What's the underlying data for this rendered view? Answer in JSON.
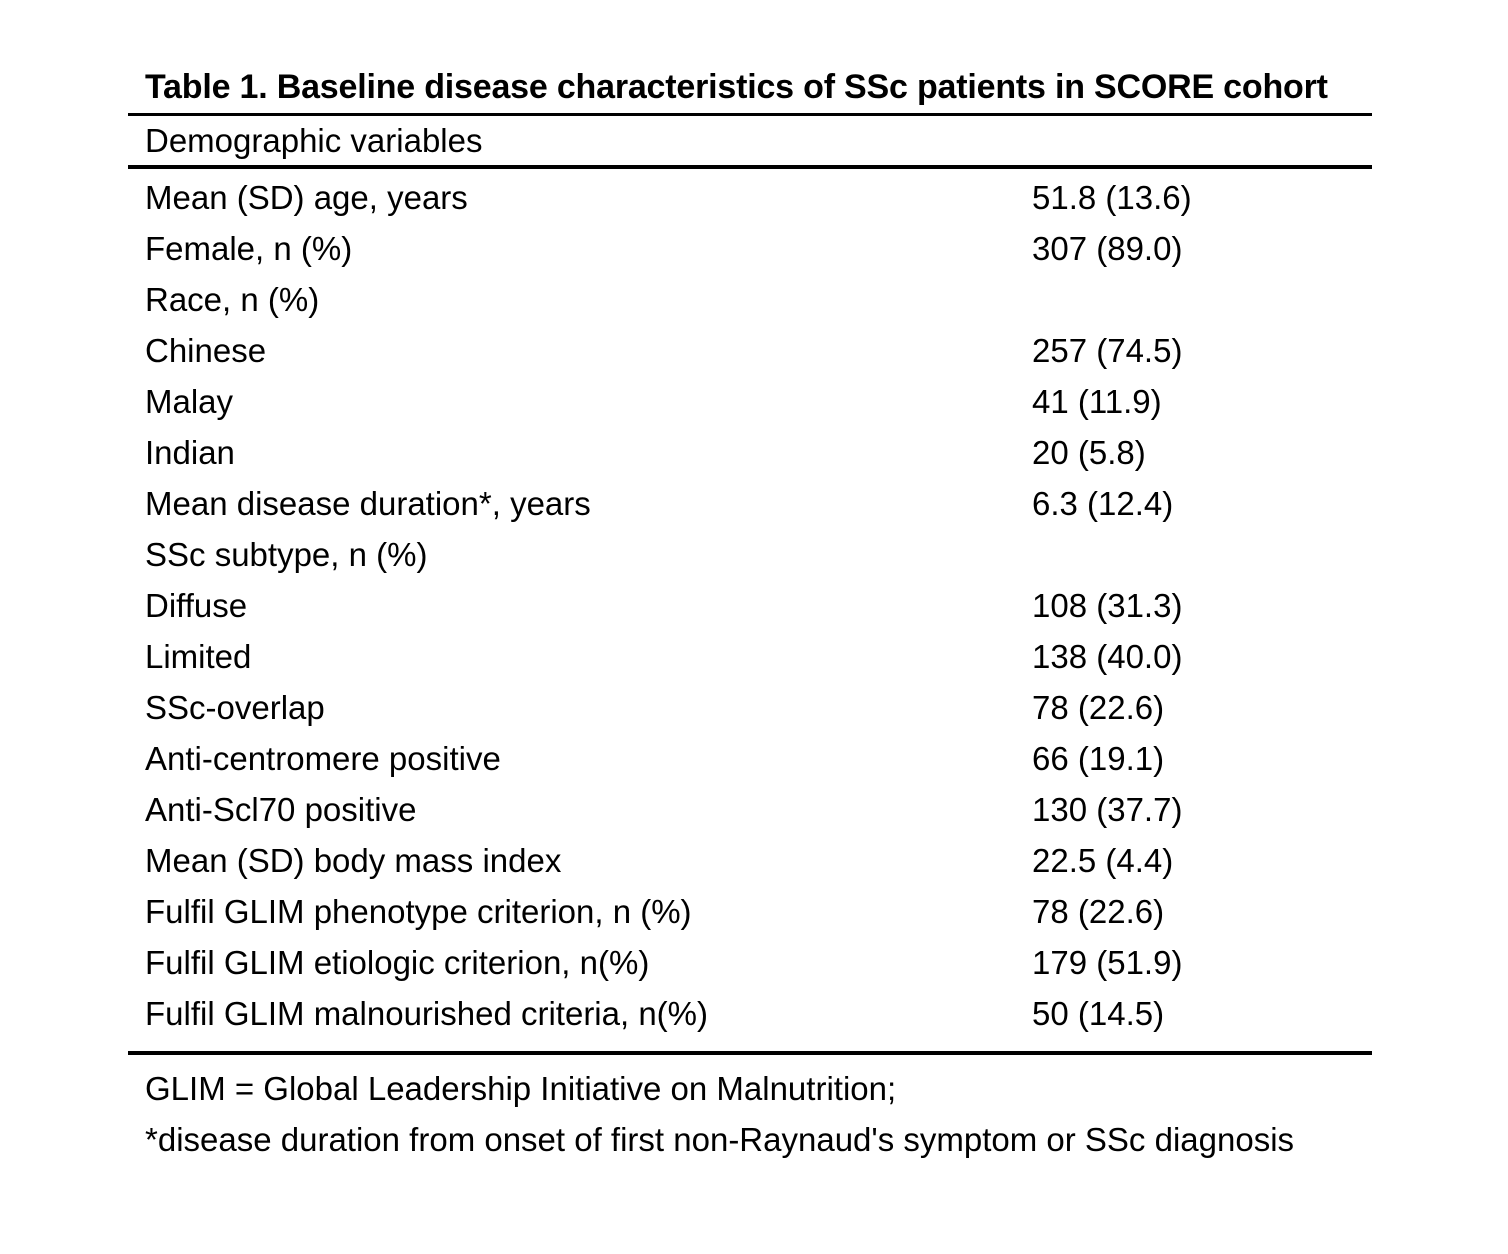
{
  "table": {
    "title": "Table 1. Baseline disease characteristics of SSc patients in SCORE cohort",
    "section_header": "Demographic variables",
    "rows": [
      {
        "label": "Mean (SD) age, years",
        "value": "51.8 (13.6)"
      },
      {
        "label": "Female, n (%)",
        "value": "307 (89.0)"
      },
      {
        "label": "Race, n (%)",
        "value": ""
      },
      {
        "label": "Chinese",
        "value": "257 (74.5)"
      },
      {
        "label": "Malay",
        "value": "41 (11.9)"
      },
      {
        "label": "Indian",
        "value": "20 (5.8)"
      },
      {
        "label": "Mean disease duration*, years",
        "value": "6.3 (12.4)"
      },
      {
        "label": "SSc subtype, n (%)",
        "value": ""
      },
      {
        "label": "Diffuse",
        "value": "108 (31.3)"
      },
      {
        "label": "Limited",
        "value": "138 (40.0)"
      },
      {
        "label": "SSc-overlap",
        "value": "78 (22.6)"
      },
      {
        "label": "Anti-centromere positive",
        "value": "66 (19.1)"
      },
      {
        "label": "Anti-Scl70 positive",
        "value": "130 (37.7)"
      },
      {
        "label": "Mean (SD) body mass index",
        "value": "22.5 (4.4)"
      },
      {
        "label": "Fulfil GLIM phenotype criterion, n (%)",
        "value": "78 (22.6)"
      },
      {
        "label": "Fulfil GLIM etiologic criterion, n(%)",
        "value": "179 (51.9)"
      },
      {
        "label": "Fulfil GLIM malnourished criteria, n(%)",
        "value": "50 (14.5)"
      }
    ],
    "footnotes": [
      "GLIM = Global Leadership Initiative on Malnutrition;",
      "*disease duration from onset of first non-Raynaud's symptom or SSc diagnosis"
    ],
    "colors": {
      "text": "#000000",
      "background": "#ffffff",
      "rule": "#000000"
    }
  }
}
